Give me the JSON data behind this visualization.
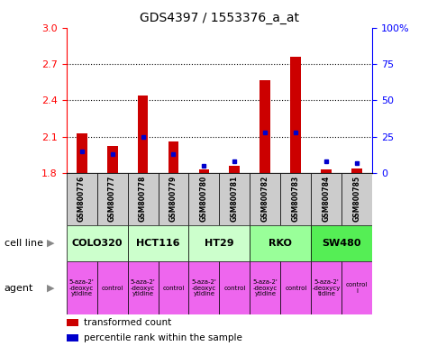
{
  "title": "GDS4397 / 1553376_a_at",
  "samples": [
    "GSM800776",
    "GSM800777",
    "GSM800778",
    "GSM800779",
    "GSM800780",
    "GSM800781",
    "GSM800782",
    "GSM800783",
    "GSM800784",
    "GSM800785"
  ],
  "transformed_counts": [
    2.13,
    2.02,
    2.44,
    2.06,
    1.83,
    1.86,
    2.57,
    2.76,
    1.83,
    1.84
  ],
  "percentile_ranks": [
    15,
    13,
    25,
    13,
    5,
    8,
    28,
    28,
    8,
    7
  ],
  "ylim_left": [
    1.8,
    3.0
  ],
  "ylim_right": [
    0,
    100
  ],
  "yticks_left": [
    1.8,
    2.1,
    2.4,
    2.7,
    3.0
  ],
  "yticks_right": [
    0,
    25,
    50,
    75,
    100
  ],
  "ytick_labels_right": [
    "0",
    "25",
    "50",
    "75",
    "100%"
  ],
  "cell_lines": [
    {
      "name": "COLO320",
      "start": 0,
      "end": 2,
      "color": "#ccffcc"
    },
    {
      "name": "HCT116",
      "start": 2,
      "end": 4,
      "color": "#ccffcc"
    },
    {
      "name": "HT29",
      "start": 4,
      "end": 6,
      "color": "#ccffcc"
    },
    {
      "name": "RKO",
      "start": 6,
      "end": 8,
      "color": "#99ff99"
    },
    {
      "name": "SW480",
      "start": 8,
      "end": 10,
      "color": "#55ee55"
    }
  ],
  "agents": [
    {
      "name": "5-aza-2'\n-deoxyc\nytidine",
      "color": "#ee66ee",
      "start": 0,
      "end": 1
    },
    {
      "name": "control",
      "color": "#ee66ee",
      "start": 1,
      "end": 2
    },
    {
      "name": "5-aza-2'\n-deoxyc\nytidine",
      "color": "#ee66ee",
      "start": 2,
      "end": 3
    },
    {
      "name": "control",
      "color": "#ee66ee",
      "start": 3,
      "end": 4
    },
    {
      "name": "5-aza-2'\n-deoxyc\nytidine",
      "color": "#ee66ee",
      "start": 4,
      "end": 5
    },
    {
      "name": "control",
      "color": "#ee66ee",
      "start": 5,
      "end": 6
    },
    {
      "name": "5-aza-2'\n-deoxyc\nytidine",
      "color": "#ee66ee",
      "start": 6,
      "end": 7
    },
    {
      "name": "control",
      "color": "#ee66ee",
      "start": 7,
      "end": 8
    },
    {
      "name": "5-aza-2'\n-deoxycy\ntidine",
      "color": "#ee66ee",
      "start": 8,
      "end": 9
    },
    {
      "name": "control\nl",
      "color": "#ee66ee",
      "start": 9,
      "end": 10
    }
  ],
  "bar_color": "#cc0000",
  "dot_color": "#0000cc",
  "base_value": 1.8,
  "dotted_lines": [
    2.1,
    2.4,
    2.7
  ],
  "sample_bg_color": "#cccccc",
  "legend_items": [
    {
      "label": "transformed count",
      "color": "#cc0000"
    },
    {
      "label": "percentile rank within the sample",
      "color": "#0000cc"
    }
  ],
  "bar_width": 0.35
}
